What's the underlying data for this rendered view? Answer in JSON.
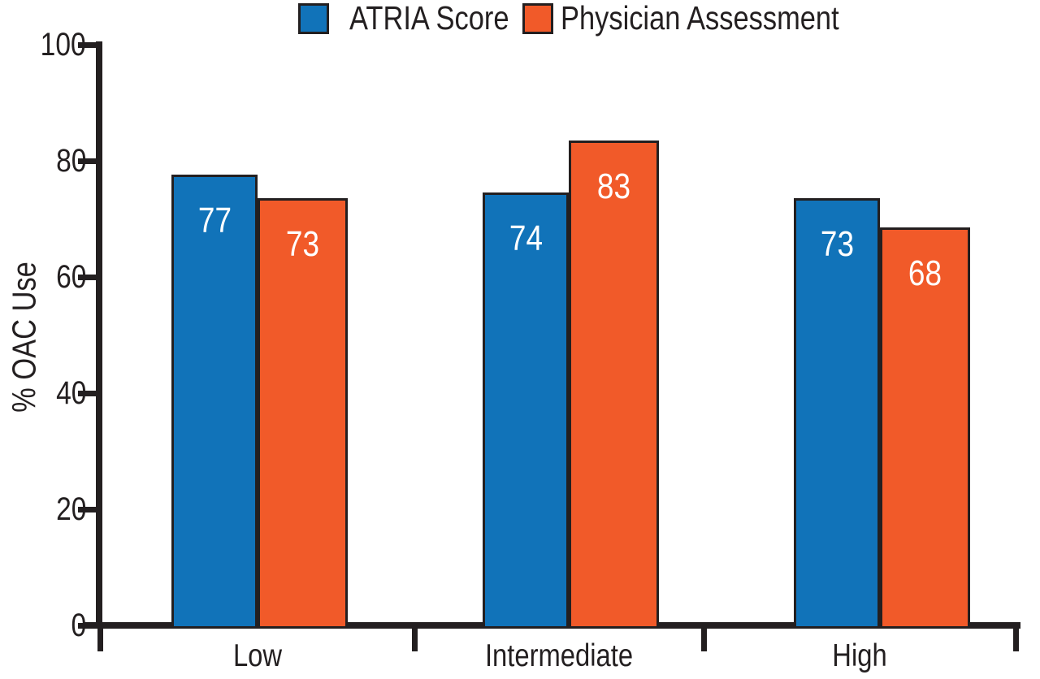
{
  "colors": {
    "series1": "#1173b9",
    "series2": "#f15a29",
    "axis": "#231f20",
    "bar_label_text": "#ffffff",
    "background": "#ffffff"
  },
  "legend": {
    "items": [
      {
        "label": "ATRIA Score",
        "color": "#1173b9"
      },
      {
        "label": "Physician Assessment",
        "color": "#f15a29"
      }
    ]
  },
  "chart_data": {
    "type": "bar",
    "categories": [
      "Low",
      "Intermediate",
      "High"
    ],
    "series": [
      {
        "name": "ATRIA Score",
        "color": "#1173b9",
        "values": [
          77,
          74,
          73
        ]
      },
      {
        "name": "Physician Assessment",
        "color": "#f15a29",
        "values": [
          73,
          83,
          68
        ]
      }
    ],
    "title": "",
    "xlabel": "",
    "ylabel": "% OAC Use",
    "ylim": [
      0,
      100
    ],
    "yticks": [
      0,
      20,
      40,
      60,
      80,
      100
    ],
    "grid": false,
    "legend_position": "top",
    "bar_value_labels_shown": true,
    "bar_value_label_color": "#ffffff"
  }
}
